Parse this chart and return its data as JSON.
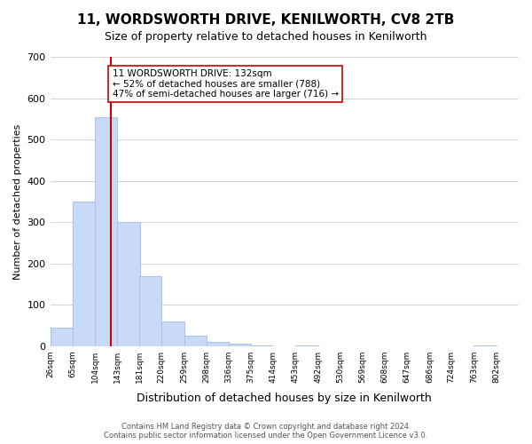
{
  "title": "11, WORDSWORTH DRIVE, KENILWORTH, CV8 2TB",
  "subtitle": "Size of property relative to detached houses in Kenilworth",
  "xlabel": "Distribution of detached houses by size in Kenilworth",
  "ylabel": "Number of detached properties",
  "bar_values": [
    45,
    350,
    553,
    300,
    168,
    60,
    25,
    10,
    5,
    2,
    0,
    2,
    0,
    0,
    0,
    0,
    0,
    0,
    0,
    2
  ],
  "bar_labels": [
    "26sqm",
    "65sqm",
    "104sqm",
    "143sqm",
    "181sqm",
    "220sqm",
    "259sqm",
    "298sqm",
    "336sqm",
    "375sqm",
    "414sqm",
    "453sqm",
    "492sqm",
    "530sqm",
    "569sqm",
    "608sqm",
    "647sqm",
    "686sqm",
    "724sqm",
    "763sqm",
    "802sqm"
  ],
  "bar_color": "#c9daf8",
  "bar_edge_color": "#a4c2f4",
  "property_line_x": 132,
  "annotation_text": "11 WORDSWORTH DRIVE: 132sqm\n← 52% of detached houses are smaller (788)\n47% of semi-detached houses are larger (716) →",
  "annotation_box_color": "#ffffff",
  "annotation_box_edge": "#cc0000",
  "property_line_color": "#cc0000",
  "ylim": [
    0,
    700
  ],
  "yticks": [
    0,
    100,
    200,
    300,
    400,
    500,
    600,
    700
  ],
  "footer_text": "Contains HM Land Registry data © Crown copyright and database right 2024.\nContains public sector information licensed under the Open Government Licence v3.0.",
  "background_color": "#ffffff",
  "bin_edges": [
    26,
    65,
    104,
    143,
    181,
    220,
    259,
    298,
    336,
    375,
    414,
    453,
    492,
    530,
    569,
    608,
    647,
    686,
    724,
    763,
    802
  ]
}
